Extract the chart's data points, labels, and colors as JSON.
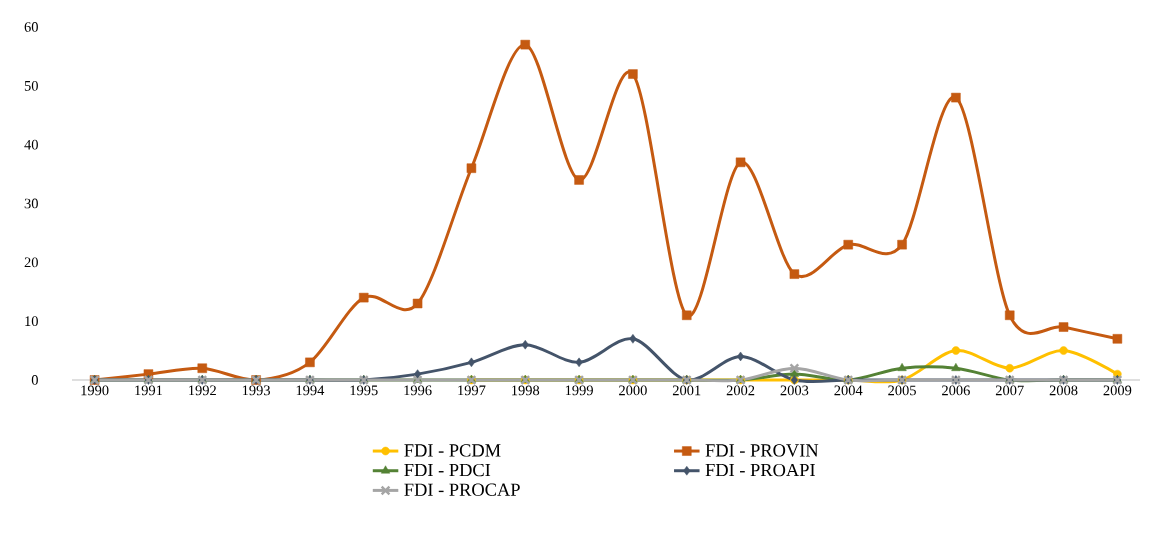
{
  "chart_data": {
    "type": "line",
    "categories": [
      "1990",
      "1991",
      "1992",
      "1993",
      "1994",
      "1995",
      "1996",
      "1997",
      "1998",
      "1999",
      "2000",
      "2001",
      "2002",
      "2003",
      "2004",
      "2005",
      "2006",
      "2007",
      "2008",
      "2009"
    ],
    "series": [
      {
        "name": "FDI - PCDM",
        "color": "#ffc000",
        "marker": "circle",
        "values": [
          null,
          null,
          null,
          null,
          null,
          null,
          null,
          0,
          0,
          0,
          0,
          0,
          0,
          0,
          0,
          0,
          5,
          2,
          5,
          1
        ]
      },
      {
        "name": "FDI - PROVIN",
        "color": "#c55a11",
        "marker": "square",
        "values": [
          0,
          1,
          2,
          0,
          3,
          14,
          13,
          36,
          57,
          34,
          52,
          11,
          37,
          18,
          23,
          23,
          48,
          11,
          9,
          7
        ]
      },
      {
        "name": "FDI - PDCI",
        "color": "#548235",
        "marker": "triangle",
        "values": [
          0,
          0,
          0,
          0,
          0,
          0,
          0,
          0,
          0,
          0,
          0,
          0,
          0,
          1,
          0,
          2,
          2,
          0,
          0,
          0
        ]
      },
      {
        "name": "FDI - PROAPI",
        "color": "#44546a",
        "marker": "diamond",
        "values": [
          0,
          0,
          0,
          0,
          0,
          0,
          1,
          3,
          6,
          3,
          7,
          0,
          4,
          0,
          0,
          0,
          0,
          0,
          0,
          0
        ]
      },
      {
        "name": "FDI - PROCAP",
        "color": "#a5a5a5",
        "marker": "cross",
        "values": [
          0,
          0,
          0,
          0,
          0,
          0,
          0,
          0,
          0,
          0,
          0,
          0,
          0,
          2,
          0,
          0,
          0,
          0,
          0,
          0
        ]
      }
    ],
    "ylim": [
      0,
      60
    ],
    "yticks": [
      0,
      10,
      20,
      30,
      40,
      50,
      60
    ],
    "grid": false,
    "legend": "bottom",
    "line_style": "solid"
  }
}
